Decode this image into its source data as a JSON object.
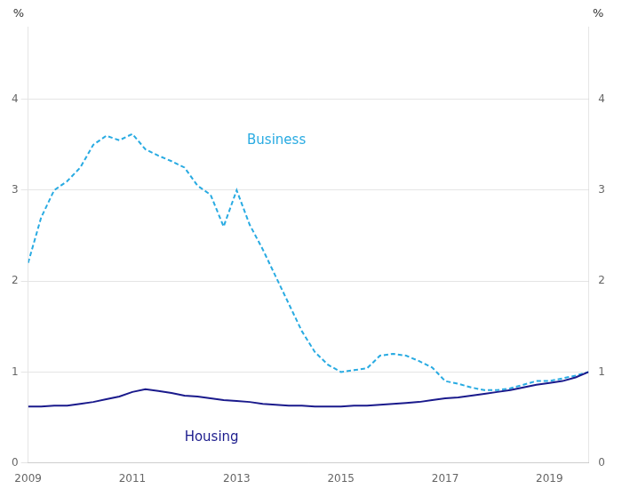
{
  "chart_data": {
    "type": "line",
    "x": [
      2009.0,
      2009.25,
      2009.5,
      2009.75,
      2010.0,
      2010.25,
      2010.5,
      2010.75,
      2011.0,
      2011.25,
      2011.5,
      2011.75,
      2012.0,
      2012.25,
      2012.5,
      2012.75,
      2013.0,
      2013.25,
      2013.5,
      2013.75,
      2014.0,
      2014.25,
      2014.5,
      2014.75,
      2015.0,
      2015.25,
      2015.5,
      2015.75,
      2016.0,
      2016.25,
      2016.5,
      2016.75,
      2017.0,
      2017.25,
      2017.5,
      2017.75,
      2018.0,
      2018.25,
      2018.5,
      2018.75,
      2019.0,
      2019.25,
      2019.5,
      2019.75
    ],
    "series": [
      {
        "name": "Housing",
        "color": "#1a1a8c",
        "line_style": "solid",
        "values": [
          0.62,
          0.62,
          0.63,
          0.63,
          0.65,
          0.67,
          0.7,
          0.73,
          0.78,
          0.81,
          0.79,
          0.77,
          0.74,
          0.73,
          0.71,
          0.69,
          0.68,
          0.67,
          0.65,
          0.64,
          0.63,
          0.63,
          0.62,
          0.62,
          0.62,
          0.63,
          0.63,
          0.64,
          0.65,
          0.66,
          0.67,
          0.69,
          0.71,
          0.72,
          0.74,
          0.76,
          0.78,
          0.8,
          0.83,
          0.86,
          0.88,
          0.9,
          0.94,
          1.0
        ]
      },
      {
        "name": "Business",
        "color": "#29ABE2",
        "line_style": "dashed",
        "values": [
          2.2,
          2.7,
          3.0,
          3.1,
          3.25,
          3.5,
          3.6,
          3.55,
          3.62,
          3.45,
          3.38,
          3.32,
          3.25,
          3.05,
          2.95,
          2.6,
          3.0,
          2.62,
          2.35,
          2.05,
          1.75,
          1.45,
          1.22,
          1.08,
          1.0,
          1.02,
          1.04,
          1.18,
          1.2,
          1.18,
          1.12,
          1.05,
          0.9,
          0.87,
          0.83,
          0.8,
          0.8,
          0.82,
          0.86,
          0.9,
          0.9,
          0.93,
          0.96,
          1.0
        ]
      }
    ],
    "xlim": [
      2009.0,
      2019.75
    ],
    "xticks": [
      2009,
      2011,
      2013,
      2015,
      2017,
      2019
    ],
    "ylim": [
      0,
      4.8
    ],
    "yticks": [
      0,
      1,
      2,
      3,
      4
    ],
    "y2lim": [
      0,
      4.8
    ],
    "y2ticks": [
      0,
      1,
      2,
      3,
      4
    ],
    "ylabel": "%",
    "y2label": "%",
    "grid": "y",
    "marker": "none",
    "annotations": [
      {
        "text": "Business",
        "x": 2013.2,
        "y": 3.55,
        "color": "#29ABE2"
      },
      {
        "text": "Housing",
        "x": 2012.0,
        "y": 0.28,
        "color": "#1a1a8c"
      }
    ]
  }
}
